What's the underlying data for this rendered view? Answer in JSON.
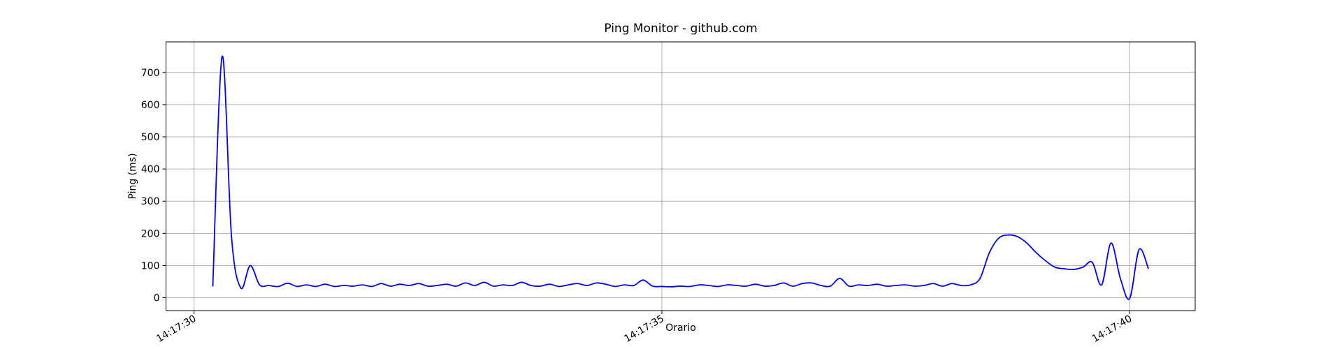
{
  "chart_data": {
    "type": "line",
    "title": "Ping Monitor - github.com",
    "xlabel": "Orario",
    "ylabel": "Ping (ms)",
    "color": "#0000ff",
    "grid": true,
    "xlim": [
      "14:17:29.7",
      "14:17:40.7"
    ],
    "xticks": [
      "14:17:30",
      "14:17:35",
      "14:17:40"
    ],
    "ylim": [
      -40,
      795
    ],
    "yticks": [
      0,
      100,
      200,
      300,
      400,
      500,
      600,
      700
    ],
    "x": [
      "14:17:30.2",
      "14:17:30.3",
      "14:17:30.4",
      "14:17:30.5",
      "14:17:30.6",
      "14:17:30.7",
      "14:17:30.8",
      "14:17:30.9",
      "14:17:31.0",
      "14:17:31.1",
      "14:17:31.2",
      "14:17:31.3",
      "14:17:31.4",
      "14:17:31.5",
      "14:17:31.6",
      "14:17:31.7",
      "14:17:31.8",
      "14:17:31.9",
      "14:17:32.0",
      "14:17:32.1",
      "14:17:32.2",
      "14:17:32.3",
      "14:17:32.4",
      "14:17:32.5",
      "14:17:32.6",
      "14:17:32.7",
      "14:17:32.8",
      "14:17:32.9",
      "14:17:33.0",
      "14:17:33.1",
      "14:17:33.2",
      "14:17:33.3",
      "14:17:33.4",
      "14:17:33.5",
      "14:17:33.6",
      "14:17:33.7",
      "14:17:33.8",
      "14:17:33.9",
      "14:17:34.0",
      "14:17:34.1",
      "14:17:34.2",
      "14:17:34.3",
      "14:17:34.4",
      "14:17:34.5",
      "14:17:34.6",
      "14:17:34.7",
      "14:17:34.8",
      "14:17:34.9",
      "14:17:35.0",
      "14:17:35.1",
      "14:17:35.2",
      "14:17:35.3",
      "14:17:35.4",
      "14:17:35.5",
      "14:17:35.6",
      "14:17:35.7",
      "14:17:35.8",
      "14:17:35.9",
      "14:17:36.0",
      "14:17:36.1",
      "14:17:36.2",
      "14:17:36.3",
      "14:17:36.4",
      "14:17:36.5",
      "14:17:36.6",
      "14:17:36.7",
      "14:17:36.8",
      "14:17:36.9",
      "14:17:37.0",
      "14:17:37.1",
      "14:17:37.2",
      "14:17:37.3",
      "14:17:37.4",
      "14:17:37.5",
      "14:17:37.6",
      "14:17:37.7",
      "14:17:37.8",
      "14:17:37.9",
      "14:17:38.0",
      "14:17:38.1",
      "14:17:38.2",
      "14:17:38.3",
      "14:17:38.4",
      "14:17:38.5",
      "14:17:38.6",
      "14:17:38.7",
      "14:17:38.8",
      "14:17:38.9",
      "14:17:39.0",
      "14:17:39.1",
      "14:17:39.2",
      "14:17:39.3",
      "14:17:39.4",
      "14:17:39.5",
      "14:17:39.6",
      "14:17:39.7",
      "14:17:39.8",
      "14:17:39.9",
      "14:17:40.0",
      "14:17:40.1",
      "14:17:40.2"
    ],
    "values": [
      35,
      750,
      190,
      30,
      100,
      40,
      38,
      35,
      45,
      35,
      40,
      35,
      42,
      35,
      38,
      36,
      40,
      35,
      44,
      36,
      42,
      38,
      44,
      36,
      38,
      42,
      36,
      46,
      38,
      48,
      36,
      40,
      38,
      48,
      38,
      36,
      42,
      35,
      40,
      44,
      38,
      46,
      42,
      35,
      40,
      38,
      55,
      36,
      35,
      34,
      36,
      35,
      40,
      38,
      35,
      40,
      38,
      36,
      42,
      36,
      38,
      46,
      36,
      44,
      46,
      38,
      36,
      60,
      36,
      40,
      38,
      42,
      36,
      38,
      40,
      36,
      38,
      44,
      36,
      44,
      38,
      40,
      60,
      140,
      185,
      195,
      190,
      170,
      140,
      115,
      95,
      90,
      88,
      95,
      110,
      40,
      170,
      60,
      -2,
      150,
      90
    ]
  }
}
